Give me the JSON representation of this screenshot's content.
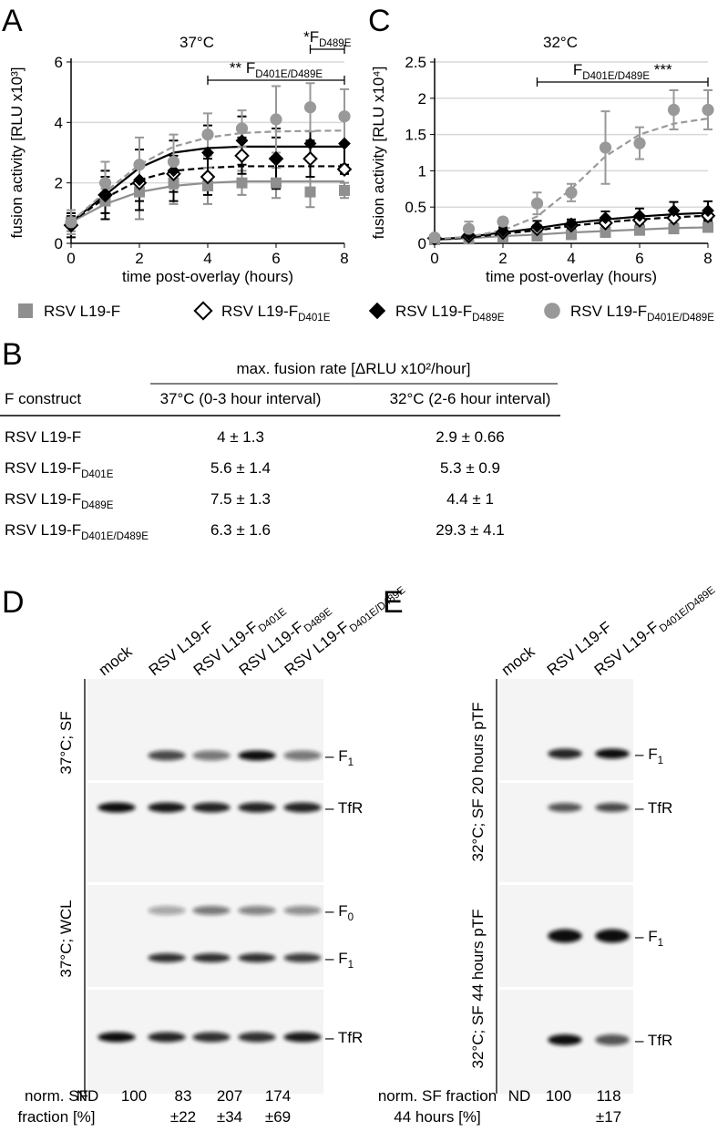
{
  "chart_data": [
    {
      "type": "line",
      "panel_label": "A",
      "title": "37°C",
      "y_label": "fusion activity [RLU x10³]",
      "x_label": "time post-overlay (hours)",
      "x": [
        0,
        1,
        2,
        3,
        4,
        5,
        6,
        7,
        8
      ],
      "xlim": [
        0,
        8
      ],
      "xticks": [
        0,
        2,
        4,
        6,
        8
      ],
      "ylim": [
        0,
        6
      ],
      "yticks": [
        0,
        2,
        4,
        6
      ],
      "grid": true,
      "series": [
        {
          "name": "RSV L19-F",
          "color": "#8f8f8f",
          "marker": "square",
          "fit_style": "solid",
          "values": [
            0.7,
            1.4,
            1.7,
            2.0,
            1.9,
            2.0,
            2.0,
            1.7,
            1.75
          ],
          "errors": [
            0.3,
            0.4,
            0.9,
            0.7,
            0.6,
            0.4,
            0.5,
            0.5,
            0.25
          ],
          "fit": [
            0.7,
            1.3,
            1.7,
            1.9,
            2.0,
            2.05,
            2.05,
            2.05,
            2.05
          ]
        },
        {
          "name": "RSV L19-F",
          "subscript": "D401E",
          "color": "#000000",
          "marker": "open-diamond",
          "fit_style": "dashed",
          "values": [
            0.6,
            1.6,
            2.0,
            2.3,
            2.2,
            2.9,
            2.8,
            2.8,
            2.45
          ],
          "errors": [
            0.3,
            0.6,
            0.6,
            0.6,
            0.6,
            0.6,
            0.7,
            0.6,
            0.15
          ],
          "fit": [
            0.7,
            1.5,
            2.1,
            2.4,
            2.5,
            2.55,
            2.55,
            2.55,
            2.55
          ]
        },
        {
          "name": "RSV L19-F",
          "subscript": "D489E",
          "color": "#000000",
          "marker": "diamond",
          "fit_style": "solid",
          "values": [
            0.6,
            1.6,
            2.1,
            2.4,
            3.0,
            3.4,
            2.8,
            3.3,
            3.3
          ],
          "errors": [
            0.4,
            0.8,
            1.0,
            1.0,
            0.9,
            0.8,
            1.0,
            1.1,
            1.0
          ],
          "fit": [
            0.7,
            1.6,
            2.5,
            3.0,
            3.15,
            3.2,
            3.2,
            3.2,
            3.2
          ]
        },
        {
          "name": "RSV L19-F",
          "subscript": "D401E/D489E",
          "color": "#999999",
          "marker": "circle",
          "fit_style": "dashed",
          "values": [
            0.7,
            2.0,
            2.6,
            2.7,
            3.6,
            3.8,
            4.1,
            4.5,
            4.2
          ],
          "errors": [
            0.4,
            0.7,
            0.9,
            0.9,
            0.7,
            0.6,
            1.1,
            0.8,
            0.9
          ],
          "fit": [
            0.7,
            1.7,
            2.6,
            3.2,
            3.5,
            3.65,
            3.7,
            3.72,
            3.73
          ]
        }
      ],
      "annotations": [
        {
          "prefix": "** ",
          "text": "F",
          "sub": "D401E/D489E",
          "x_from": 4,
          "x_to": 8
        },
        {
          "prefix": "*",
          "text": "F",
          "sub": "D489E",
          "x_from": 7,
          "x_to": 8
        }
      ]
    },
    {
      "type": "line",
      "panel_label": "C",
      "title": "32°C",
      "y_label": "fusion activity [RLU x10⁴]",
      "x_label": "time post-overlay (hours)",
      "x": [
        0,
        1,
        2,
        3,
        4,
        5,
        6,
        7,
        8
      ],
      "xlim": [
        0,
        8
      ],
      "xticks": [
        0,
        2,
        4,
        6,
        8
      ],
      "ylim": [
        0,
        2.5
      ],
      "yticks": [
        0,
        0.5,
        1,
        1.5,
        2,
        2.5
      ],
      "grid": true,
      "series": [
        {
          "color": "#8f8f8f",
          "marker": "square",
          "fit_style": "solid",
          "values": [
            0.05,
            0.06,
            0.08,
            0.1,
            0.12,
            0.15,
            0.18,
            0.2,
            0.22
          ],
          "errors": [
            0.02,
            0.02,
            0.02,
            0.02,
            0.03,
            0.03,
            0.04,
            0.03,
            0.04
          ],
          "fit": [
            0.05,
            0.07,
            0.1,
            0.12,
            0.15,
            0.17,
            0.19,
            0.21,
            0.22
          ]
        },
        {
          "color": "#000000",
          "marker": "open-diamond",
          "fit_style": "dashed",
          "values": [
            0.07,
            0.1,
            0.15,
            0.2,
            0.25,
            0.28,
            0.32,
            0.35,
            0.38
          ],
          "errors": [
            0.03,
            0.03,
            0.04,
            0.05,
            0.05,
            0.06,
            0.07,
            0.08,
            0.07
          ],
          "fit": [
            0.05,
            0.08,
            0.13,
            0.18,
            0.24,
            0.29,
            0.33,
            0.36,
            0.38
          ]
        },
        {
          "color": "#000000",
          "marker": "diamond",
          "fit_style": "solid",
          "values": [
            0.08,
            0.12,
            0.17,
            0.23,
            0.27,
            0.35,
            0.38,
            0.45,
            0.45
          ],
          "errors": [
            0.03,
            0.04,
            0.05,
            0.08,
            0.06,
            0.09,
            0.1,
            0.12,
            0.13
          ],
          "fit": [
            0.05,
            0.09,
            0.15,
            0.21,
            0.28,
            0.33,
            0.37,
            0.4,
            0.42
          ]
        },
        {
          "color": "#999999",
          "marker": "circle",
          "fit_style": "dashed",
          "values": [
            0.08,
            0.2,
            0.3,
            0.55,
            0.7,
            1.32,
            1.38,
            1.84,
            1.84
          ],
          "errors": [
            0.03,
            0.1,
            0.05,
            0.15,
            0.12,
            0.5,
            0.22,
            0.27,
            0.27
          ],
          "fit": [
            0.06,
            0.09,
            0.18,
            0.37,
            0.75,
            1.2,
            1.5,
            1.65,
            1.72
          ]
        }
      ],
      "annotations": [
        {
          "text": "F",
          "sub": "D401E/D489E",
          "suffix": " ***",
          "x_from": 3,
          "x_to": 8
        }
      ]
    }
  ],
  "table": {
    "panel_label": "B",
    "group_header": "max. fusion rate [ΔRLU x10²/hour]",
    "columns": [
      "F construct",
      "37°C (0-3 hour interval)",
      "32°C (2-6 hour interval)"
    ],
    "rows": [
      [
        {
          "text": "RSV L19-F"
        },
        "4 ± 1.3",
        "2.9 ± 0.66"
      ],
      [
        {
          "text": "RSV L19-F",
          "sub": "D401E"
        },
        "5.6 ± 1.4",
        "5.3 ± 0.9"
      ],
      [
        {
          "text": "RSV L19-F",
          "sub": "D489E"
        },
        "7.5 ± 1.3",
        "4.4 ± 1"
      ],
      [
        {
          "text": "RSV L19-F",
          "sub": "D401E/D489E"
        },
        "6.3 ± 1.6",
        "29.3 ± 4.1"
      ]
    ]
  },
  "blots": [
    {
      "panel_label": "D",
      "lanes": [
        {
          "text": "mock"
        },
        {
          "text": "RSV L19-F"
        },
        {
          "text": "RSV L19-F",
          "sub": "D401E"
        },
        {
          "text": "RSV L19-F",
          "sub": "D489E"
        },
        {
          "text": "RSV L19-F",
          "sub": "D401E/D489E"
        }
      ],
      "row_labels": [
        "37°C; SF",
        "37°C; WCL"
      ],
      "bands": [
        {
          "text": "F",
          "sub": "1"
        },
        {
          "text": "TfR"
        },
        {
          "text": "F",
          "sub": "0"
        },
        {
          "text": "F",
          "sub": "1"
        },
        {
          "text": "TfR"
        }
      ],
      "footer": [
        "norm. SF",
        "fraction [%]"
      ],
      "footer_values": [
        {
          "value": "ND"
        },
        {
          "value": "100"
        },
        {
          "value": "83",
          "error": "±22"
        },
        {
          "value": "207",
          "error": "±34"
        },
        {
          "value": "174",
          "error": "±69"
        }
      ]
    },
    {
      "panel_label": "E",
      "lanes": [
        {
          "text": "mock"
        },
        {
          "text": "RSV L19-F"
        },
        {
          "text": "RSV L19-F",
          "sub": "D401E/D489E"
        }
      ],
      "row_labels": [
        "32°C; SF 20 hours pTF",
        "32°C; SF 44 hours pTF"
      ],
      "bands": [
        {
          "text": "F",
          "sub": "1"
        },
        {
          "text": "TfR"
        },
        {
          "text": "F",
          "sub": "1"
        },
        {
          "text": "TfR"
        }
      ],
      "footer": [
        "norm. SF fraction",
        "44 hours [%]"
      ],
      "footer_values": [
        {
          "value": "ND"
        },
        {
          "value": "100"
        },
        {
          "value": "118",
          "error": "±17"
        }
      ]
    }
  ]
}
